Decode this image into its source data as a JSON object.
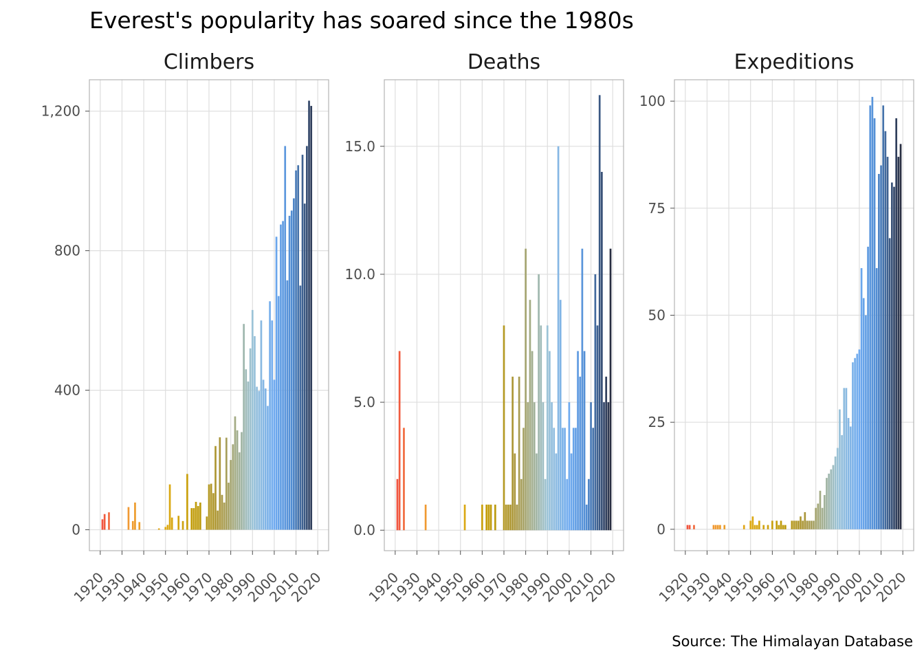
{
  "title": "Everest's popularity has soared since the 1980s",
  "caption": "Source: The Himalayan Database",
  "chart_data": [
    {
      "type": "bar",
      "panel": "Climbers",
      "ylim": [
        -60,
        1290
      ],
      "xlim": [
        1915,
        2025
      ],
      "grid": true,
      "yticks": [
        0,
        400,
        800,
        1200
      ],
      "ytick_labels": [
        "0",
        "400",
        "800",
        "1,200"
      ],
      "xticks": [
        1920,
        1930,
        1940,
        1950,
        1960,
        1970,
        1980,
        1990,
        2000,
        2010,
        2020
      ],
      "x": [
        1921,
        1922,
        1924,
        1933,
        1935,
        1936,
        1938,
        1947,
        1950,
        1951,
        1952,
        1953,
        1954,
        1956,
        1958,
        1960,
        1962,
        1963,
        1964,
        1965,
        1966,
        1969,
        1970,
        1971,
        1972,
        1973,
        1974,
        1975,
        1976,
        1977,
        1978,
        1979,
        1980,
        1981,
        1982,
        1983,
        1984,
        1985,
        1986,
        1987,
        1988,
        1989,
        1990,
        1991,
        1992,
        1993,
        1994,
        1995,
        1996,
        1997,
        1998,
        1999,
        2000,
        2001,
        2002,
        2003,
        2004,
        2005,
        2006,
        2007,
        2008,
        2009,
        2010,
        2011,
        2012,
        2013,
        2014,
        2015,
        2016,
        2017,
        2018,
        2019
      ],
      "values": [
        30,
        45,
        50,
        65,
        25,
        78,
        22,
        4,
        8,
        14,
        130,
        35,
        0,
        40,
        25,
        160,
        62,
        62,
        80,
        68,
        78,
        38,
        130,
        132,
        105,
        240,
        55,
        265,
        100,
        78,
        264,
        135,
        200,
        245,
        325,
        285,
        222,
        280,
        590,
        460,
        425,
        520,
        630,
        555,
        410,
        398,
        600,
        430,
        405,
        355,
        655,
        600,
        430,
        840,
        670,
        875,
        885,
        1100,
        715,
        900,
        915,
        950,
        1030,
        1045,
        700,
        1075,
        935,
        1100,
        1230,
        1215,
        0,
        0
      ]
    },
    {
      "type": "bar",
      "panel": "Deaths",
      "ylim": [
        -0.8,
        17.6
      ],
      "xlim": [
        1915,
        2025
      ],
      "grid": true,
      "yticks": [
        0,
        5,
        10,
        15
      ],
      "ytick_labels": [
        "0.0",
        "5.0",
        "10.0",
        "15.0"
      ],
      "xticks": [
        1920,
        1930,
        1940,
        1950,
        1960,
        1970,
        1980,
        1990,
        2000,
        2010,
        2020
      ],
      "x": [
        1921,
        1922,
        1924,
        1934,
        1952,
        1960,
        1962,
        1963,
        1964,
        1966,
        1970,
        1971,
        1972,
        1973,
        1974,
        1975,
        1976,
        1977,
        1978,
        1979,
        1980,
        1981,
        1982,
        1983,
        1984,
        1985,
        1986,
        1987,
        1988,
        1989,
        1990,
        1991,
        1992,
        1993,
        1994,
        1995,
        1996,
        1997,
        1998,
        1999,
        2000,
        2001,
        2002,
        2003,
        2004,
        2005,
        2006,
        2007,
        2008,
        2009,
        2010,
        2011,
        2012,
        2013,
        2014,
        2015,
        2016,
        2017,
        2018,
        2019
      ],
      "values": [
        2,
        7,
        4,
        1,
        1,
        1,
        1,
        1,
        1,
        1,
        8,
        1,
        1,
        1,
        6,
        3,
        1,
        6,
        2,
        4,
        11,
        5,
        9,
        7,
        5,
        3,
        10,
        8,
        5,
        2,
        8,
        7,
        5,
        4,
        3,
        15,
        9,
        4,
        4,
        2,
        5,
        3,
        4,
        4,
        7,
        6,
        11,
        7,
        1,
        2,
        5,
        4,
        10,
        8,
        17,
        14,
        5,
        6,
        5,
        11
      ]
    },
    {
      "type": "bar",
      "panel": "Expeditions",
      "ylim": [
        -5,
        105
      ],
      "xlim": [
        1915,
        2025
      ],
      "grid": true,
      "yticks": [
        0,
        25,
        50,
        75,
        100
      ],
      "ytick_labels": [
        "0",
        "25",
        "50",
        "75",
        "100"
      ],
      "xticks": [
        1920,
        1930,
        1940,
        1950,
        1960,
        1970,
        1980,
        1990,
        2000,
        2010,
        2020
      ],
      "x": [
        1921,
        1922,
        1924,
        1933,
        1934,
        1935,
        1936,
        1938,
        1947,
        1950,
        1951,
        1952,
        1953,
        1954,
        1956,
        1958,
        1960,
        1962,
        1963,
        1964,
        1965,
        1966,
        1969,
        1970,
        1971,
        1972,
        1973,
        1974,
        1975,
        1976,
        1977,
        1978,
        1979,
        1980,
        1981,
        1982,
        1983,
        1984,
        1985,
        1986,
        1987,
        1988,
        1989,
        1990,
        1991,
        1992,
        1993,
        1994,
        1995,
        1996,
        1997,
        1998,
        1999,
        2000,
        2001,
        2002,
        2003,
        2004,
        2005,
        2006,
        2007,
        2008,
        2009,
        2010,
        2011,
        2012,
        2013,
        2014,
        2015,
        2016,
        2017,
        2018,
        2019
      ],
      "values": [
        1,
        1,
        1,
        1,
        1,
        1,
        1,
        1,
        1,
        2,
        3,
        1,
        1,
        2,
        1,
        1,
        2,
        2,
        1,
        2,
        1,
        1,
        2,
        2,
        2,
        2,
        3,
        2,
        4,
        2,
        2,
        2,
        2,
        5,
        6,
        9,
        5,
        8,
        12,
        13,
        14,
        15,
        17,
        19,
        28,
        22,
        33,
        33,
        26,
        24,
        39,
        40,
        41,
        42,
        61,
        54,
        50,
        66,
        99,
        101,
        96,
        61,
        83,
        85,
        99,
        93,
        87,
        68,
        81,
        80,
        96,
        87,
        90
      ]
    }
  ]
}
